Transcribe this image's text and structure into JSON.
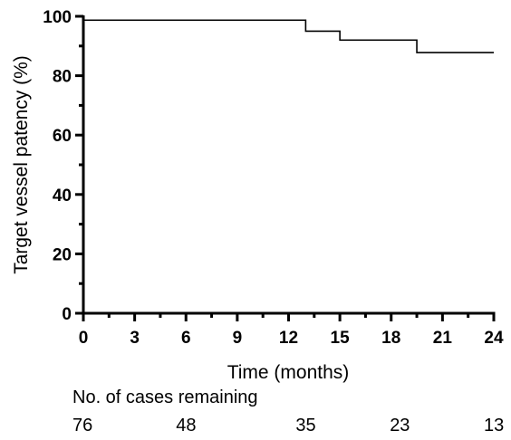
{
  "chart_data": {
    "type": "line",
    "step": true,
    "xlabel": "Time (months)",
    "ylabel": "Target vessel patency (%)",
    "xlim": [
      0,
      24
    ],
    "ylim": [
      0,
      100
    ],
    "x_ticks": [
      "0",
      "3",
      "6",
      "9",
      "12",
      "15",
      "18",
      "21",
      "24"
    ],
    "y_ticks": [
      "0",
      "20",
      "40",
      "60",
      "80",
      "100"
    ],
    "grid": false,
    "series": [
      {
        "x": [
          0,
          13,
          13,
          15,
          15,
          19.5,
          19.5,
          24
        ],
        "y": [
          98.7,
          98.7,
          95.0,
          95.0,
          92.0,
          92.0,
          87.8,
          87.8
        ]
      }
    ]
  },
  "risk_table": {
    "title": "No. of cases remaining",
    "times": [
      0,
      6,
      13,
      18.5,
      24
    ],
    "values": [
      "76",
      "48",
      "35",
      "23",
      "13"
    ]
  },
  "colors": {
    "line": "#000000",
    "axis": "#000000"
  }
}
